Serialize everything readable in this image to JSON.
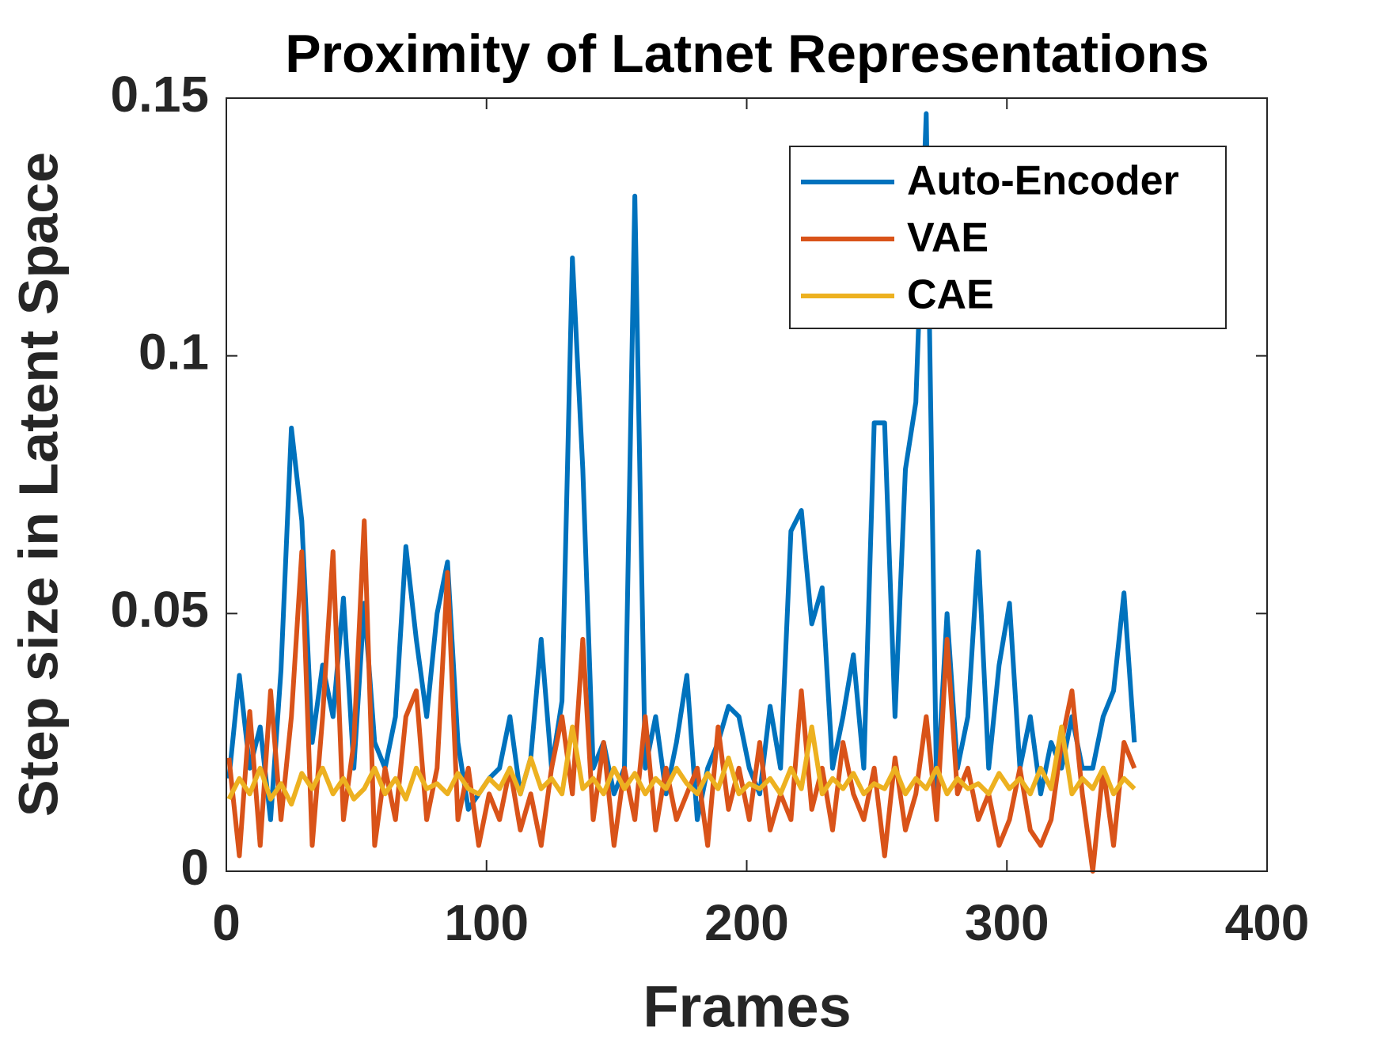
{
  "chart_data": {
    "type": "line",
    "title": "Proximity of Latnet Representations",
    "xlabel": "Frames",
    "ylabel": "Step size in Latent Space",
    "x": [
      1,
      5,
      9,
      13,
      17,
      21,
      25,
      29,
      33,
      37,
      41,
      45,
      49,
      53,
      57,
      61,
      65,
      69,
      73,
      77,
      81,
      85,
      89,
      93,
      97,
      101,
      105,
      109,
      113,
      117,
      121,
      125,
      129,
      133,
      137,
      141,
      145,
      149,
      153,
      157,
      161,
      165,
      169,
      173,
      177,
      181,
      185,
      189,
      193,
      197,
      201,
      205,
      209,
      213,
      217,
      221,
      225,
      229,
      233,
      237,
      241,
      245,
      249,
      253,
      257,
      261,
      265,
      269,
      273,
      277,
      281,
      285,
      289,
      293,
      297,
      301,
      305,
      309,
      313,
      317,
      321,
      325,
      329,
      333,
      337,
      341,
      345,
      349
    ],
    "series": [
      {
        "name": "Auto-Encoder",
        "color": "#0072bd",
        "values": [
          0.018,
          0.038,
          0.02,
          0.028,
          0.01,
          0.039,
          0.086,
          0.068,
          0.025,
          0.04,
          0.03,
          0.053,
          0.02,
          0.052,
          0.025,
          0.02,
          0.03,
          0.063,
          0.045,
          0.03,
          0.05,
          0.06,
          0.025,
          0.012,
          0.015,
          0.018,
          0.02,
          0.03,
          0.015,
          0.022,
          0.045,
          0.02,
          0.033,
          0.119,
          0.078,
          0.02,
          0.025,
          0.015,
          0.02,
          0.131,
          0.02,
          0.03,
          0.015,
          0.025,
          0.038,
          0.01,
          0.02,
          0.025,
          0.032,
          0.03,
          0.02,
          0.015,
          0.032,
          0.02,
          0.066,
          0.07,
          0.048,
          0.055,
          0.02,
          0.03,
          0.042,
          0.02,
          0.087,
          0.087,
          0.03,
          0.078,
          0.091,
          0.147,
          0.015,
          0.05,
          0.02,
          0.03,
          0.062,
          0.02,
          0.04,
          0.052,
          0.02,
          0.03,
          0.015,
          0.025,
          0.02,
          0.03,
          0.02,
          0.02,
          0.03,
          0.035,
          0.054,
          0.025
        ]
      },
      {
        "name": "VAE",
        "color": "#d95319",
        "values": [
          0.022,
          0.003,
          0.031,
          0.005,
          0.035,
          0.01,
          0.03,
          0.062,
          0.005,
          0.03,
          0.062,
          0.01,
          0.025,
          0.068,
          0.005,
          0.02,
          0.01,
          0.03,
          0.035,
          0.01,
          0.02,
          0.058,
          0.01,
          0.02,
          0.005,
          0.015,
          0.01,
          0.02,
          0.008,
          0.015,
          0.005,
          0.02,
          0.03,
          0.015,
          0.045,
          0.01,
          0.025,
          0.005,
          0.02,
          0.01,
          0.03,
          0.008,
          0.02,
          0.01,
          0.015,
          0.02,
          0.005,
          0.028,
          0.012,
          0.02,
          0.01,
          0.025,
          0.008,
          0.015,
          0.01,
          0.035,
          0.012,
          0.02,
          0.008,
          0.025,
          0.015,
          0.01,
          0.02,
          0.003,
          0.022,
          0.008,
          0.015,
          0.03,
          0.01,
          0.045,
          0.015,
          0.02,
          0.01,
          0.015,
          0.005,
          0.01,
          0.02,
          0.008,
          0.005,
          0.01,
          0.025,
          0.035,
          0.015,
          0,
          0.02,
          0.005,
          0.025,
          0.02
        ]
      },
      {
        "name": "CAE",
        "color": "#edb120",
        "values": [
          0.014,
          0.018,
          0.015,
          0.02,
          0.014,
          0.017,
          0.013,
          0.019,
          0.016,
          0.02,
          0.015,
          0.018,
          0.014,
          0.016,
          0.02,
          0.015,
          0.018,
          0.014,
          0.02,
          0.016,
          0.017,
          0.015,
          0.019,
          0.016,
          0.015,
          0.018,
          0.016,
          0.02,
          0.015,
          0.022,
          0.016,
          0.018,
          0.015,
          0.028,
          0.016,
          0.018,
          0.015,
          0.02,
          0.016,
          0.019,
          0.015,
          0.018,
          0.016,
          0.02,
          0.017,
          0.015,
          0.019,
          0.016,
          0.022,
          0.015,
          0.017,
          0.016,
          0.018,
          0.015,
          0.02,
          0.016,
          0.028,
          0.015,
          0.018,
          0.016,
          0.019,
          0.015,
          0.017,
          0.016,
          0.02,
          0.015,
          0.018,
          0.016,
          0.02,
          0.015,
          0.018,
          0.016,
          0.017,
          0.015,
          0.019,
          0.016,
          0.018,
          0.015,
          0.02,
          0.016,
          0.028,
          0.015,
          0.018,
          0.016,
          0.02,
          0.015,
          0.018,
          0.016
        ]
      }
    ],
    "xlim": [
      0,
      400
    ],
    "ylim": [
      0,
      0.15
    ],
    "xticks": [
      0,
      100,
      200,
      300,
      400
    ],
    "yticks": [
      0,
      0.05,
      0.1,
      0.15
    ],
    "legend": "upper right"
  }
}
